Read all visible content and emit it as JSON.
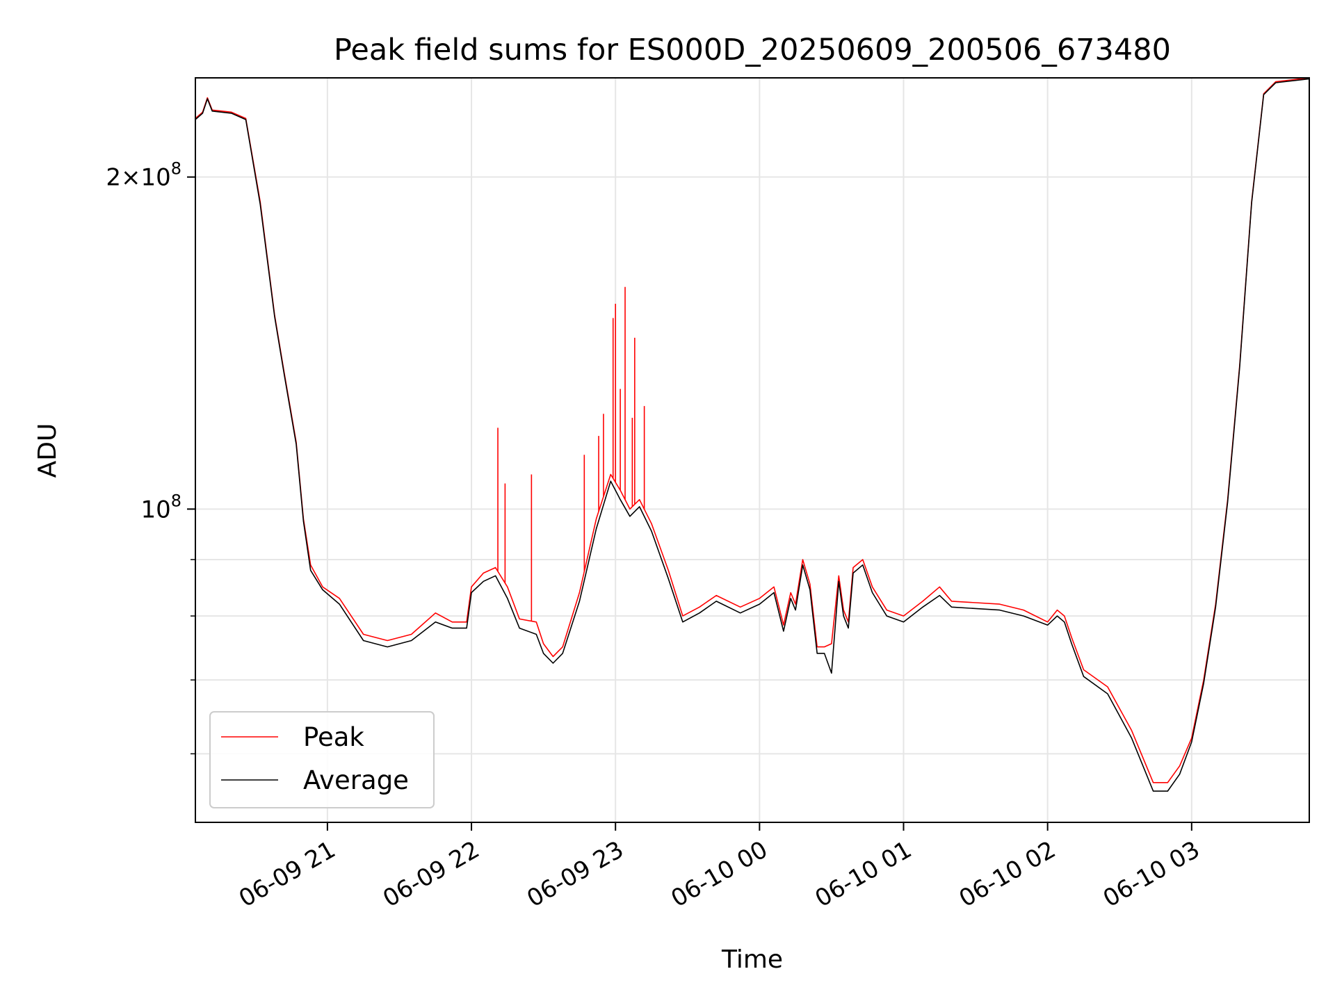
{
  "chart_data": {
    "type": "line",
    "title": "Peak field sums for ES000D_20250609_200506_673480",
    "xlabel": "Time",
    "ylabel": "ADU",
    "y_scale": "log",
    "xlim": [
      "2025-06-09 20:05",
      "2025-06-10 03:49"
    ],
    "ylim": [
      52000000,
      246000000
    ],
    "grid": true,
    "legend_position": "lower-left",
    "x_tick_labels": [
      "06-09 21",
      "06-09 22",
      "06-09 23",
      "06-10 00",
      "06-10 01",
      "06-10 02",
      "06-10 03"
    ],
    "x_ticks": [
      "2025-06-09 21:00",
      "2025-06-09 22:00",
      "2025-06-09 23:00",
      "2025-06-10 00:00",
      "2025-06-10 01:00",
      "2025-06-10 02:00",
      "2025-06-10 03:00"
    ],
    "y_major_ticks": [
      100000000,
      200000000
    ],
    "y_major_tick_labels": [
      "10^8",
      "2×10^8"
    ],
    "y_minor_ticks": [
      60000000,
      70000000,
      80000000,
      90000000
    ],
    "series": [
      {
        "name": "Peak",
        "color": "#ff0000",
        "points": [
          [
            "2025-06-09 20:05",
            226000000
          ],
          [
            "2025-06-09 20:08",
            229000000
          ],
          [
            "2025-06-09 20:10",
            236000000
          ],
          [
            "2025-06-09 20:12",
            230000000
          ],
          [
            "2025-06-09 20:20",
            229000000
          ],
          [
            "2025-06-09 20:26",
            226000000
          ],
          [
            "2025-06-09 20:32",
            190000000
          ],
          [
            "2025-06-09 20:38",
            150000000
          ],
          [
            "2025-06-09 20:42",
            133000000
          ],
          [
            "2025-06-09 20:47",
            115000000
          ],
          [
            "2025-06-09 20:50",
            98000000
          ],
          [
            "2025-06-09 20:53",
            89000000
          ],
          [
            "2025-06-09 20:58",
            85000000
          ],
          [
            "2025-06-09 21:05",
            83000000
          ],
          [
            "2025-06-09 21:15",
            77000000
          ],
          [
            "2025-06-09 21:25",
            76000000
          ],
          [
            "2025-06-09 21:35",
            77000000
          ],
          [
            "2025-06-09 21:45",
            80500000
          ],
          [
            "2025-06-09 21:52",
            79000000
          ],
          [
            "2025-06-09 21:58",
            79000000
          ],
          [
            "2025-06-09 22:00",
            85000000
          ],
          [
            "2025-06-09 22:05",
            87500000
          ],
          [
            "2025-06-09 22:10",
            88500000
          ],
          [
            "2025-06-09 22:15",
            85000000
          ],
          [
            "2025-06-09 22:20",
            79500000
          ],
          [
            "2025-06-09 22:27",
            79000000
          ],
          [
            "2025-06-09 22:30",
            75500000
          ],
          [
            "2025-06-09 22:34",
            73500000
          ],
          [
            "2025-06-09 22:38",
            75000000
          ],
          [
            "2025-06-09 22:45",
            84000000
          ],
          [
            "2025-06-09 22:52",
            98000000
          ],
          [
            "2025-06-09 22:58",
            107500000
          ],
          [
            "2025-06-09 23:02",
            104000000
          ],
          [
            "2025-06-09 23:06",
            100000000
          ],
          [
            "2025-06-09 23:10",
            102000000
          ],
          [
            "2025-06-09 23:15",
            97000000
          ],
          [
            "2025-06-09 23:22",
            88000000
          ],
          [
            "2025-06-09 23:28",
            80000000
          ],
          [
            "2025-06-09 23:35",
            81500000
          ],
          [
            "2025-06-09 23:42",
            83500000
          ],
          [
            "2025-06-09 23:52",
            81500000
          ],
          [
            "2025-06-10 00:00",
            83000000
          ],
          [
            "2025-06-10 00:06",
            85000000
          ],
          [
            "2025-06-10 00:10",
            78500000
          ],
          [
            "2025-06-10 00:13",
            84000000
          ],
          [
            "2025-06-10 00:15",
            82000000
          ],
          [
            "2025-06-10 00:18",
            90000000
          ],
          [
            "2025-06-10 00:21",
            85500000
          ],
          [
            "2025-06-10 00:24",
            75000000
          ],
          [
            "2025-06-10 00:27",
            75000000
          ],
          [
            "2025-06-10 00:30",
            75500000
          ],
          [
            "2025-06-10 00:33",
            87000000
          ],
          [
            "2025-06-10 00:35",
            81000000
          ],
          [
            "2025-06-10 00:37",
            79000000
          ],
          [
            "2025-06-10 00:39",
            88500000
          ],
          [
            "2025-06-10 00:43",
            90000000
          ],
          [
            "2025-06-10 00:47",
            85000000
          ],
          [
            "2025-06-10 00:53",
            81000000
          ],
          [
            "2025-06-10 01:00",
            80000000
          ],
          [
            "2025-06-10 01:08",
            82500000
          ],
          [
            "2025-06-10 01:15",
            85000000
          ],
          [
            "2025-06-10 01:20",
            82500000
          ],
          [
            "2025-06-10 01:40",
            82000000
          ],
          [
            "2025-06-10 01:50",
            81000000
          ],
          [
            "2025-06-10 02:00",
            79000000
          ],
          [
            "2025-06-10 02:04",
            81000000
          ],
          [
            "2025-06-10 02:07",
            80000000
          ],
          [
            "2025-06-10 02:10",
            76500000
          ],
          [
            "2025-06-10 02:15",
            71500000
          ],
          [
            "2025-06-10 02:25",
            69000000
          ],
          [
            "2025-06-10 02:35",
            63000000
          ],
          [
            "2025-06-10 02:44",
            56500000
          ],
          [
            "2025-06-10 02:50",
            56500000
          ],
          [
            "2025-06-10 02:55",
            58500000
          ],
          [
            "2025-06-10 03:00",
            62000000
          ],
          [
            "2025-06-10 03:05",
            70000000
          ],
          [
            "2025-06-10 03:10",
            82000000
          ],
          [
            "2025-06-10 03:15",
            102000000
          ],
          [
            "2025-06-10 03:20",
            135000000
          ],
          [
            "2025-06-10 03:25",
            190000000
          ],
          [
            "2025-06-10 03:30",
            238000000
          ],
          [
            "2025-06-10 03:35",
            244000000
          ],
          [
            "2025-06-10 03:49",
            246000000
          ]
        ],
        "spikes": [
          [
            "2025-06-09 22:11",
            118500000
          ],
          [
            "2025-06-09 22:14",
            105500000
          ],
          [
            "2025-06-09 22:25",
            107500000
          ],
          [
            "2025-06-09 22:47",
            112000000
          ],
          [
            "2025-06-09 22:53",
            116500000
          ],
          [
            "2025-06-09 22:55",
            122000000
          ],
          [
            "2025-06-09 22:59",
            149000000
          ],
          [
            "2025-06-09 23:00",
            153500000
          ],
          [
            "2025-06-09 23:02",
            128500000
          ],
          [
            "2025-06-09 23:04",
            159000000
          ],
          [
            "2025-06-09 23:07",
            121000000
          ],
          [
            "2025-06-09 23:08",
            143000000
          ],
          [
            "2025-06-09 23:12",
            124000000
          ]
        ]
      },
      {
        "name": "Average",
        "color": "#000000",
        "points": [
          [
            "2025-06-09 20:05",
            225500000
          ],
          [
            "2025-06-09 20:08",
            228500000
          ],
          [
            "2025-06-09 20:10",
            235500000
          ],
          [
            "2025-06-09 20:12",
            229500000
          ],
          [
            "2025-06-09 20:20",
            228500000
          ],
          [
            "2025-06-09 20:26",
            225500000
          ],
          [
            "2025-06-09 20:32",
            189000000
          ],
          [
            "2025-06-09 20:38",
            149500000
          ],
          [
            "2025-06-09 20:42",
            132500000
          ],
          [
            "2025-06-09 20:47",
            114500000
          ],
          [
            "2025-06-09 20:50",
            97500000
          ],
          [
            "2025-06-09 20:53",
            88000000
          ],
          [
            "2025-06-09 20:58",
            84500000
          ],
          [
            "2025-06-09 21:05",
            82000000
          ],
          [
            "2025-06-09 21:15",
            76000000
          ],
          [
            "2025-06-09 21:25",
            75000000
          ],
          [
            "2025-06-09 21:35",
            76000000
          ],
          [
            "2025-06-09 21:45",
            79000000
          ],
          [
            "2025-06-09 21:52",
            78000000
          ],
          [
            "2025-06-09 21:58",
            78000000
          ],
          [
            "2025-06-09 22:00",
            84000000
          ],
          [
            "2025-06-09 22:05",
            86000000
          ],
          [
            "2025-06-09 22:10",
            87000000
          ],
          [
            "2025-06-09 22:15",
            83000000
          ],
          [
            "2025-06-09 22:20",
            78000000
          ],
          [
            "2025-06-09 22:27",
            77000000
          ],
          [
            "2025-06-09 22:30",
            74000000
          ],
          [
            "2025-06-09 22:34",
            72500000
          ],
          [
            "2025-06-09 22:38",
            74000000
          ],
          [
            "2025-06-09 22:45",
            82500000
          ],
          [
            "2025-06-09 22:52",
            96000000
          ],
          [
            "2025-06-09 22:58",
            106000000
          ],
          [
            "2025-06-09 23:02",
            102000000
          ],
          [
            "2025-06-09 23:06",
            98500000
          ],
          [
            "2025-06-09 23:10",
            100500000
          ],
          [
            "2025-06-09 23:15",
            95500000
          ],
          [
            "2025-06-09 23:22",
            86500000
          ],
          [
            "2025-06-09 23:28",
            79000000
          ],
          [
            "2025-06-09 23:35",
            80500000
          ],
          [
            "2025-06-09 23:42",
            82500000
          ],
          [
            "2025-06-09 23:52",
            80500000
          ],
          [
            "2025-06-10 00:00",
            82000000
          ],
          [
            "2025-06-10 00:06",
            84000000
          ],
          [
            "2025-06-10 00:10",
            77500000
          ],
          [
            "2025-06-10 00:13",
            83000000
          ],
          [
            "2025-06-10 00:15",
            81000000
          ],
          [
            "2025-06-10 00:18",
            89000000
          ],
          [
            "2025-06-10 00:21",
            84500000
          ],
          [
            "2025-06-10 00:24",
            74000000
          ],
          [
            "2025-06-10 00:27",
            74000000
          ],
          [
            "2025-06-10 00:30",
            71000000
          ],
          [
            "2025-06-10 00:33",
            86000000
          ],
          [
            "2025-06-10 00:35",
            80000000
          ],
          [
            "2025-06-10 00:37",
            78000000
          ],
          [
            "2025-06-10 00:39",
            87500000
          ],
          [
            "2025-06-10 00:43",
            89000000
          ],
          [
            "2025-06-10 00:47",
            84000000
          ],
          [
            "2025-06-10 00:53",
            80000000
          ],
          [
            "2025-06-10 01:00",
            79000000
          ],
          [
            "2025-06-10 01:08",
            81500000
          ],
          [
            "2025-06-10 01:15",
            83500000
          ],
          [
            "2025-06-10 01:20",
            81500000
          ],
          [
            "2025-06-10 01:40",
            81000000
          ],
          [
            "2025-06-10 01:50",
            80000000
          ],
          [
            "2025-06-10 02:00",
            78500000
          ],
          [
            "2025-06-10 02:04",
            80000000
          ],
          [
            "2025-06-10 02:07",
            79000000
          ],
          [
            "2025-06-10 02:10",
            75500000
          ],
          [
            "2025-06-10 02:15",
            70500000
          ],
          [
            "2025-06-10 02:25",
            68000000
          ],
          [
            "2025-06-10 02:35",
            62000000
          ],
          [
            "2025-06-10 02:44",
            55500000
          ],
          [
            "2025-06-10 02:50",
            55500000
          ],
          [
            "2025-06-10 02:55",
            57500000
          ],
          [
            "2025-06-10 03:00",
            61500000
          ],
          [
            "2025-06-10 03:05",
            69500000
          ],
          [
            "2025-06-10 03:10",
            81500000
          ],
          [
            "2025-06-10 03:15",
            101500000
          ],
          [
            "2025-06-10 03:20",
            134500000
          ],
          [
            "2025-06-10 03:25",
            189500000
          ],
          [
            "2025-06-10 03:30",
            237500000
          ],
          [
            "2025-06-10 03:35",
            243500000
          ],
          [
            "2025-06-10 03:49",
            245500000
          ]
        ]
      }
    ]
  }
}
